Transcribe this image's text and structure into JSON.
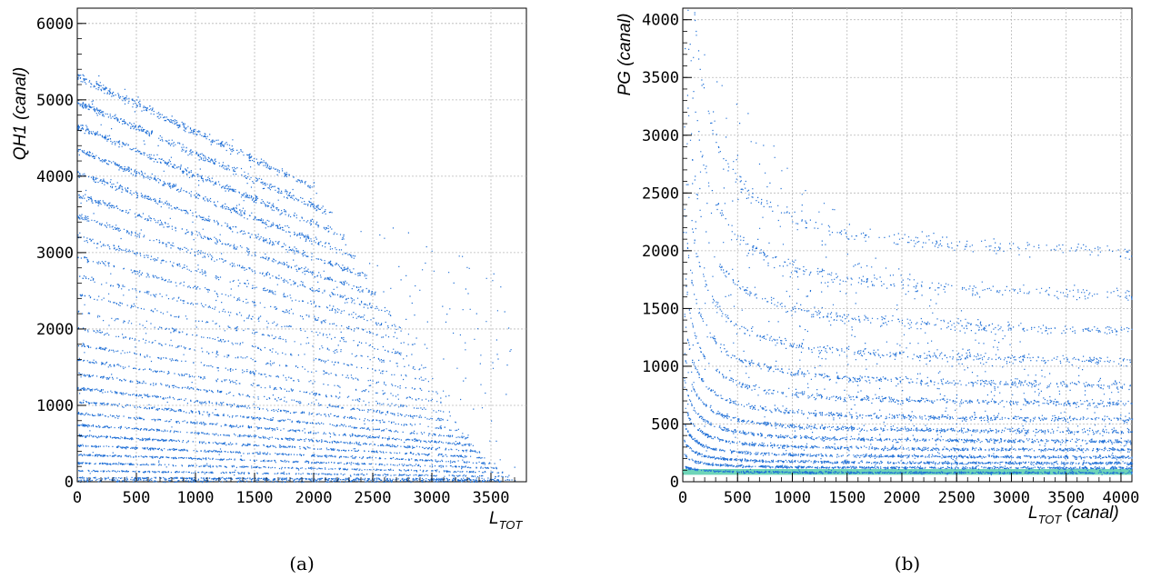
{
  "chart_data": [
    {
      "type": "scatter",
      "panel_caption": "(a)",
      "ylabel": "QH1 (canal)",
      "xlabel_main": "L",
      "xlabel_sub": "TOT",
      "xlabel_suffix": "",
      "xlim": [
        0,
        3800
      ],
      "ylim": [
        0,
        6200
      ],
      "xticks": [
        "0",
        "500",
        "1000",
        "1500",
        "2000",
        "2500",
        "3000",
        "3500"
      ],
      "yticks": [
        "0",
        "1000",
        "2000",
        "3000",
        "4000",
        "5000",
        "6000"
      ],
      "grid": true,
      "point_color": "#1f6fd6",
      "bands": [
        {
          "y0": 60,
          "xmax": 3700
        },
        {
          "y0": 150,
          "xmax": 3650
        },
        {
          "y0": 250,
          "xmax": 3600
        },
        {
          "y0": 360,
          "xmax": 3550
        },
        {
          "y0": 480,
          "xmax": 3500
        },
        {
          "y0": 610,
          "xmax": 3450
        },
        {
          "y0": 750,
          "xmax": 3400
        },
        {
          "y0": 900,
          "xmax": 3350
        },
        {
          "y0": 1060,
          "xmax": 3300
        },
        {
          "y0": 1230,
          "xmax": 3250
        },
        {
          "y0": 1410,
          "xmax": 3200
        },
        {
          "y0": 1600,
          "xmax": 3150
        },
        {
          "y0": 1800,
          "xmax": 3100
        },
        {
          "y0": 2010,
          "xmax": 3050
        },
        {
          "y0": 2230,
          "xmax": 3000
        },
        {
          "y0": 2460,
          "xmax": 2950
        },
        {
          "y0": 2700,
          "xmax": 2900
        },
        {
          "y0": 2950,
          "xmax": 2850
        },
        {
          "y0": 3210,
          "xmax": 2750
        },
        {
          "y0": 3480,
          "xmax": 2650
        },
        {
          "y0": 3760,
          "xmax": 2550
        },
        {
          "y0": 4050,
          "xmax": 2450
        },
        {
          "y0": 4350,
          "xmax": 2350
        },
        {
          "y0": 4660,
          "xmax": 2250
        },
        {
          "y0": 4980,
          "xmax": 2150
        },
        {
          "y0": 5310,
          "xmax": 2000
        }
      ],
      "band_decay": 0.52
    },
    {
      "type": "scatter",
      "panel_caption": "(b)",
      "ylabel": "PG (canal)",
      "xlabel_main": "L",
      "xlabel_sub": "TOT",
      "xlabel_suffix": " (canal)",
      "xlim": [
        0,
        4100
      ],
      "ylim": [
        0,
        4100
      ],
      "xticks": [
        "0",
        "500",
        "1000",
        "1500",
        "2000",
        "2500",
        "3000",
        "3500",
        "4000"
      ],
      "yticks": [
        "0",
        "500",
        "1000",
        "1500",
        "2000",
        "2500",
        "3000",
        "3500",
        "4000"
      ],
      "grid": true,
      "point_color": "#1f6fd6",
      "hot_color": "#3ec7a0",
      "hyperbolas": [
        {
          "y_inf": 80,
          "a": 6000
        },
        {
          "y_inf": 120,
          "a": 12000
        },
        {
          "y_inf": 160,
          "a": 20000
        },
        {
          "y_inf": 210,
          "a": 30000
        },
        {
          "y_inf": 270,
          "a": 42000
        },
        {
          "y_inf": 340,
          "a": 56000
        },
        {
          "y_inf": 420,
          "a": 72000
        },
        {
          "y_inf": 520,
          "a": 95000
        },
        {
          "y_inf": 650,
          "a": 125000
        },
        {
          "y_inf": 800,
          "a": 160000
        },
        {
          "y_inf": 1000,
          "a": 210000
        },
        {
          "y_inf": 1250,
          "a": 270000
        },
        {
          "y_inf": 1550,
          "a": 340000
        },
        {
          "y_inf": 1900,
          "a": 420000
        }
      ]
    }
  ]
}
